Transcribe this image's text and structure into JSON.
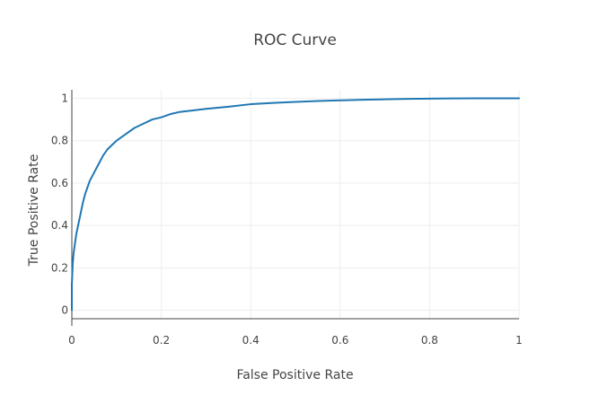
{
  "chart_data": {
    "type": "line",
    "title": "ROC Curve",
    "xlabel": "False Positive Rate",
    "ylabel": "True Positive Rate",
    "xlim": [
      0,
      1
    ],
    "ylim": [
      -0.04,
      1.04
    ],
    "xticks": [
      0,
      0.2,
      0.4,
      0.6,
      0.8,
      1
    ],
    "xtick_labels": [
      "0",
      "0.2",
      "0.4",
      "0.6",
      "0.8",
      "1"
    ],
    "yticks": [
      0,
      0.2,
      0.4,
      0.6,
      0.8,
      1
    ],
    "ytick_labels": [
      "0",
      "0.2",
      "0.4",
      "0.6",
      "0.8",
      "1"
    ],
    "grid": true,
    "legend": false,
    "series": [
      {
        "color": "#1f77b4",
        "x": [
          0,
          0.0,
          0.002,
          0.004,
          0.006,
          0.008,
          0.01,
          0.015,
          0.02,
          0.025,
          0.03,
          0.035,
          0.04,
          0.05,
          0.06,
          0.07,
          0.08,
          0.09,
          0.1,
          0.12,
          0.14,
          0.16,
          0.18,
          0.2,
          0.22,
          0.24,
          0.26,
          0.3,
          0.35,
          0.4,
          0.45,
          0.5,
          0.55,
          0.6,
          0.65,
          0.7,
          0.75,
          0.8,
          0.85,
          0.9,
          0.95,
          1.0
        ],
        "y": [
          0,
          0.12,
          0.22,
          0.27,
          0.3,
          0.33,
          0.36,
          0.41,
          0.46,
          0.51,
          0.55,
          0.58,
          0.61,
          0.65,
          0.69,
          0.73,
          0.76,
          0.78,
          0.8,
          0.83,
          0.86,
          0.88,
          0.9,
          0.91,
          0.925,
          0.935,
          0.94,
          0.95,
          0.96,
          0.972,
          0.978,
          0.983,
          0.987,
          0.99,
          0.993,
          0.995,
          0.997,
          0.998,
          0.999,
          1.0,
          1.0,
          1.0
        ]
      }
    ]
  }
}
